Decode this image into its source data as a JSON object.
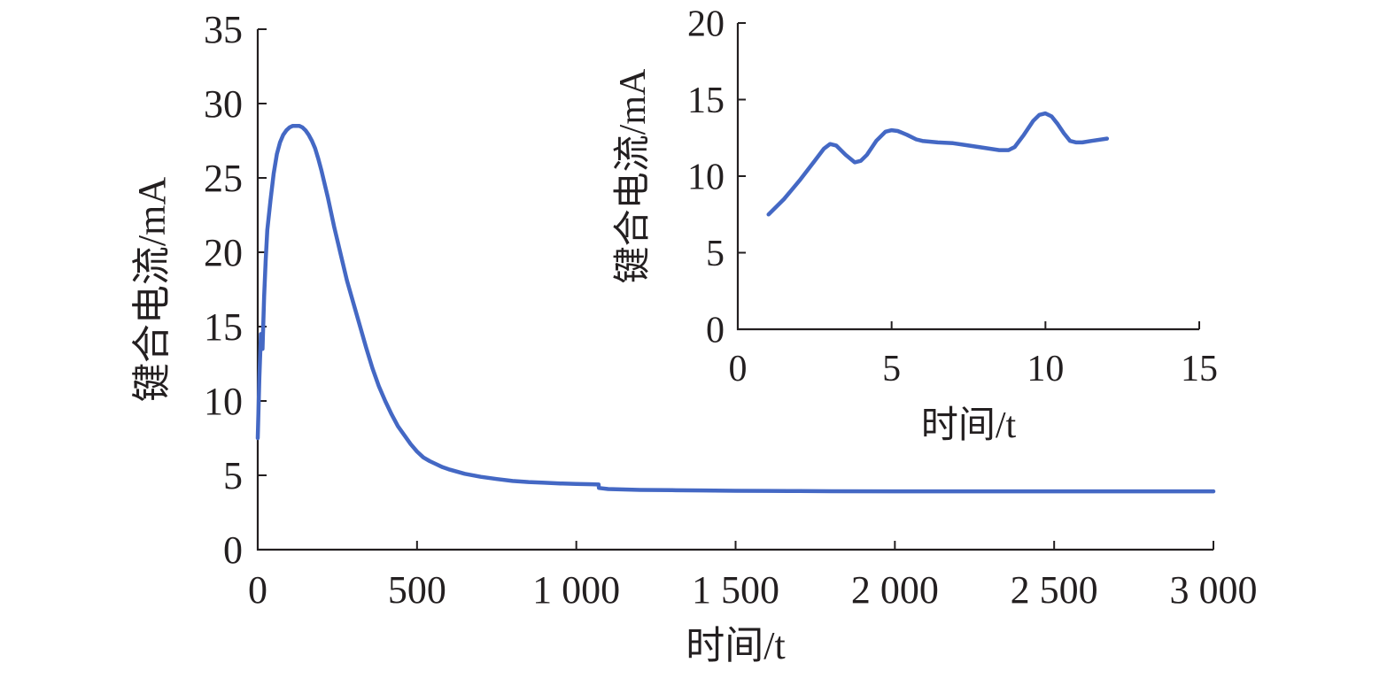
{
  "chart_data": [
    {
      "id": "main",
      "type": "line",
      "title": "",
      "xlabel": "时间/t",
      "ylabel": "键合电流/mA",
      "xlim": [
        0,
        3000
      ],
      "ylim": [
        0,
        35
      ],
      "x_ticks": [
        0,
        500,
        1000,
        1500,
        2000,
        2500,
        3000
      ],
      "x_tick_labels": [
        "0",
        "500",
        "1 000",
        "1 500",
        "2 000",
        "2 500",
        "3 000"
      ],
      "y_ticks": [
        0,
        5,
        10,
        15,
        20,
        25,
        30,
        35
      ],
      "y_tick_labels": [
        "0",
        "5",
        "10",
        "15",
        "20",
        "25",
        "30",
        "35"
      ],
      "grid": false,
      "series": [
        {
          "color": "#4468c4",
          "x": [
            0,
            5,
            10,
            15,
            20,
            25,
            30,
            40,
            50,
            60,
            70,
            80,
            90,
            100,
            110,
            120,
            130,
            140,
            150,
            160,
            170,
            180,
            190,
            200,
            220,
            240,
            260,
            280,
            300,
            320,
            340,
            360,
            380,
            400,
            420,
            440,
            460,
            480,
            500,
            520,
            540,
            560,
            580,
            600,
            650,
            700,
            750,
            800,
            850,
            900,
            950,
            1000,
            1050,
            1070,
            1071,
            1100,
            1200,
            1300,
            1400,
            1500,
            1600,
            1700,
            1800,
            2000,
            2200,
            2400,
            2600,
            2800,
            3000
          ],
          "y": [
            7.5,
            11.5,
            14.5,
            13.5,
            17.0,
            19.5,
            21.5,
            23.5,
            25.3,
            26.6,
            27.4,
            27.9,
            28.2,
            28.4,
            28.5,
            28.5,
            28.5,
            28.4,
            28.2,
            27.9,
            27.5,
            27.0,
            26.3,
            25.5,
            23.7,
            21.7,
            19.9,
            18.1,
            16.6,
            15.1,
            13.6,
            12.2,
            11.0,
            10.0,
            9.1,
            8.3,
            7.7,
            7.1,
            6.6,
            6.2,
            5.95,
            5.75,
            5.55,
            5.4,
            5.1,
            4.9,
            4.75,
            4.62,
            4.55,
            4.5,
            4.45,
            4.42,
            4.4,
            4.38,
            4.15,
            4.08,
            4.02,
            4.0,
            3.98,
            3.96,
            3.95,
            3.94,
            3.93,
            3.92,
            3.92,
            3.92,
            3.92,
            3.92,
            3.92
          ]
        }
      ]
    },
    {
      "id": "inset",
      "type": "line",
      "title": "",
      "xlabel": "时间/t",
      "ylabel": "键合电流/mA",
      "xlim": [
        0,
        15
      ],
      "ylim": [
        0,
        20
      ],
      "x_ticks": [
        0,
        5,
        10,
        15
      ],
      "x_tick_labels": [
        "0",
        "5",
        "10",
        "15"
      ],
      "y_ticks": [
        0,
        5,
        10,
        15,
        20
      ],
      "y_tick_labels": [
        "0",
        "5",
        "10",
        "15",
        "20"
      ],
      "grid": false,
      "series": [
        {
          "color": "#4468c4",
          "x": [
            1.0,
            1.5,
            2.0,
            2.5,
            2.8,
            3.0,
            3.2,
            3.5,
            3.8,
            4.0,
            4.2,
            4.5,
            4.8,
            5.0,
            5.2,
            5.5,
            5.8,
            6.0,
            6.5,
            7.0,
            7.5,
            8.0,
            8.5,
            8.8,
            9.0,
            9.3,
            9.6,
            9.8,
            10.0,
            10.2,
            10.4,
            10.6,
            10.8,
            11.0,
            11.2,
            11.5,
            12.0
          ],
          "y": [
            7.5,
            8.5,
            9.7,
            11.0,
            11.8,
            12.1,
            12.0,
            11.4,
            10.9,
            11.0,
            11.4,
            12.3,
            12.9,
            13.0,
            12.95,
            12.7,
            12.4,
            12.3,
            12.2,
            12.15,
            12.0,
            11.85,
            11.7,
            11.7,
            11.9,
            12.7,
            13.6,
            14.0,
            14.1,
            13.9,
            13.4,
            12.8,
            12.3,
            12.2,
            12.2,
            12.3,
            12.45
          ]
        }
      ]
    }
  ]
}
